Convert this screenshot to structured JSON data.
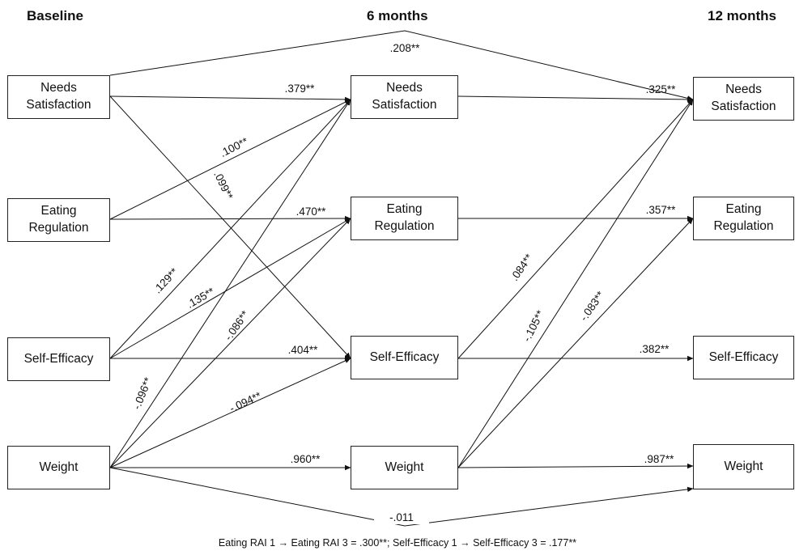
{
  "columns": {
    "baseline": "Baseline",
    "six_months": "6 months",
    "twelve_months": "12 months"
  },
  "nodes": {
    "b_needs": [
      "Needs",
      "Satisfaction"
    ],
    "b_eating": [
      "Eating",
      "Regulation"
    ],
    "b_selfeff": [
      "Self-Efficacy"
    ],
    "b_weight": [
      "Weight"
    ],
    "m_needs": [
      "Needs",
      "Satisfaction"
    ],
    "m_eating": [
      "Eating",
      "Regulation"
    ],
    "m_selfeff": [
      "Self-Efficacy"
    ],
    "m_weight": [
      "Weight"
    ],
    "t_needs": [
      "Needs",
      "Satisfaction"
    ],
    "t_eating": [
      "Eating",
      "Regulation"
    ],
    "t_selfeff": [
      "Self-Efficacy"
    ],
    "t_weight": [
      "Weight"
    ]
  },
  "paths": [
    {
      "id": "b-needs-t-needs",
      "from": "b_needs",
      "to": "t_needs",
      "label": ".208**"
    },
    {
      "id": "b-needs-m-needs",
      "from": "b_needs",
      "to": "m_needs",
      "label": ".379**"
    },
    {
      "id": "b-needs-m-selfeff",
      "from": "b_needs",
      "to": "m_selfeff",
      "label": ".099**"
    },
    {
      "id": "b-eating-m-needs",
      "from": "b_eating",
      "to": "m_needs",
      "label": ".100**"
    },
    {
      "id": "b-eating-m-eating",
      "from": "b_eating",
      "to": "m_eating",
      "label": ".470**"
    },
    {
      "id": "b-selfeff-m-needs",
      "from": "b_selfeff",
      "to": "m_needs",
      "label": ".129**"
    },
    {
      "id": "b-selfeff-m-eating",
      "from": "b_selfeff",
      "to": "m_eating",
      "label": ".135**"
    },
    {
      "id": "b-selfeff-m-selfeff",
      "from": "b_selfeff",
      "to": "m_selfeff",
      "label": ".404**"
    },
    {
      "id": "b-weight-m-needs",
      "from": "b_weight",
      "to": "m_needs",
      "label": "-.096**"
    },
    {
      "id": "b-weight-m-eating",
      "from": "b_weight",
      "to": "m_eating",
      "label": "-.086**"
    },
    {
      "id": "b-weight-m-selfeff",
      "from": "b_weight",
      "to": "m_selfeff",
      "label": "-.094**"
    },
    {
      "id": "b-weight-m-weight",
      "from": "b_weight",
      "to": "m_weight",
      "label": ".960**"
    },
    {
      "id": "b-weight-t-weight",
      "from": "b_weight",
      "to": "t_weight",
      "label": "-.011"
    },
    {
      "id": "m-needs-t-needs",
      "from": "m_needs",
      "to": "t_needs",
      "label": ".325**"
    },
    {
      "id": "m-eating-t-eating",
      "from": "m_eating",
      "to": "t_eating",
      "label": ".357**"
    },
    {
      "id": "m-selfeff-t-needs",
      "from": "m_selfeff",
      "to": "t_needs",
      "label": ".084**"
    },
    {
      "id": "m-selfeff-t-selfeff",
      "from": "m_selfeff",
      "to": "t_selfeff",
      "label": ".382**"
    },
    {
      "id": "m-weight-t-needs",
      "from": "m_weight",
      "to": "t_needs",
      "label": "-.105**"
    },
    {
      "id": "m-weight-t-eating",
      "from": "m_weight",
      "to": "t_eating",
      "label": "-.083**"
    },
    {
      "id": "m-weight-t-weight",
      "from": "m_weight",
      "to": "t_weight",
      "label": ".987**"
    }
  ],
  "caption": "Eating RAI 1 → Eating RAI 3 = .300**; Self-Efficacy 1 → Self-Efficacy 3 = .177**"
}
